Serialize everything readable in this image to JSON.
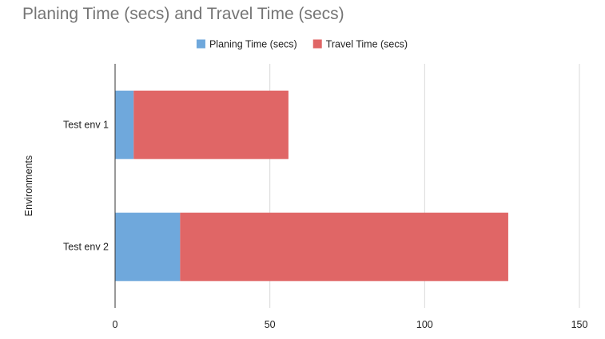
{
  "chart_data": {
    "type": "bar",
    "orientation": "horizontal",
    "stacked": true,
    "title": "Planing Time (secs) and Travel Time (secs)",
    "xlabel": "",
    "ylabel": "Environments",
    "categories": [
      "Test env 1",
      "Test env 2"
    ],
    "series": [
      {
        "name": "Planing Time (secs)",
        "color": "#6fa8dc",
        "values": [
          6,
          21
        ]
      },
      {
        "name": "Travel Time (secs)",
        "color": "#e06666",
        "values": [
          50,
          106
        ]
      }
    ],
    "xlim": [
      0,
      150
    ],
    "xticks": [
      "0",
      "50",
      "100",
      "150"
    ],
    "xtick_values": [
      0,
      50,
      100,
      150
    ],
    "grid": true,
    "legend_position": "top"
  }
}
